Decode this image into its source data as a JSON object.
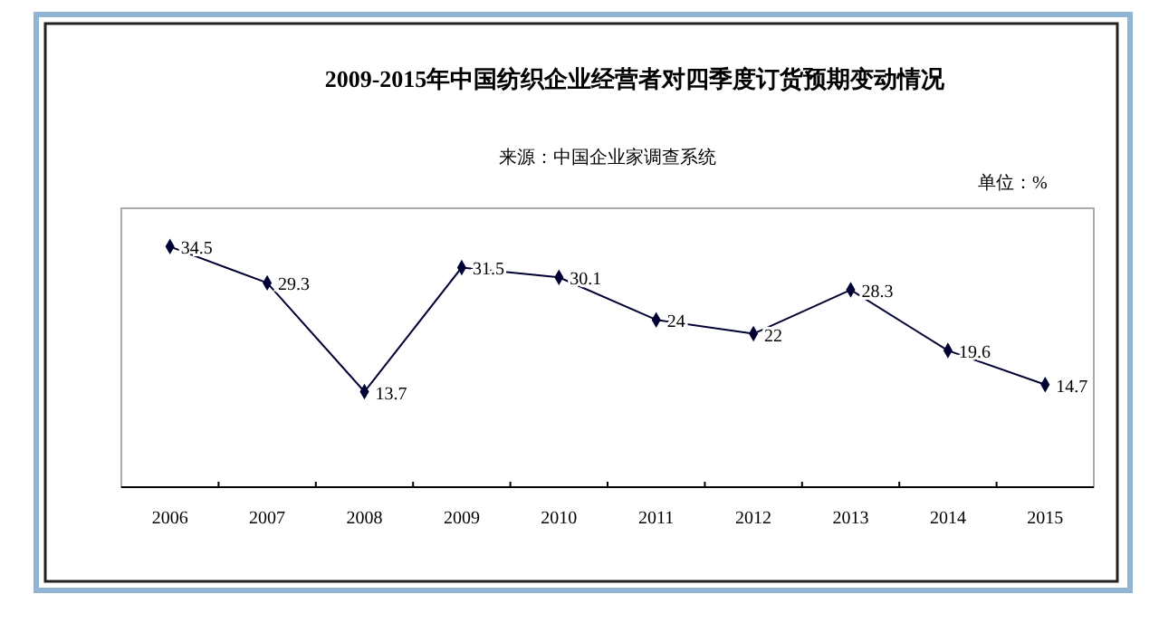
{
  "chart_data": {
    "type": "line",
    "title": "2009-2015年中国纺织企业经营者对四季度订货预期变动情况",
    "subtitle": "来源：中国企业家调查系统",
    "annotations": [
      "单位：%"
    ],
    "categories": [
      "2006",
      "2007",
      "2008",
      "2009",
      "2010",
      "2011",
      "2012",
      "2013",
      "2014",
      "2015"
    ],
    "series": [
      {
        "color": "#000033",
        "values": [
          34.5,
          29.3,
          13.7,
          31.5,
          30.1,
          24,
          22,
          28.3,
          19.6,
          14.7
        ]
      }
    ],
    "ylim": [
      0,
      40
    ],
    "data_labels": true,
    "marker": "diamond",
    "line_style": "solid",
    "tick_labels": "x"
  }
}
